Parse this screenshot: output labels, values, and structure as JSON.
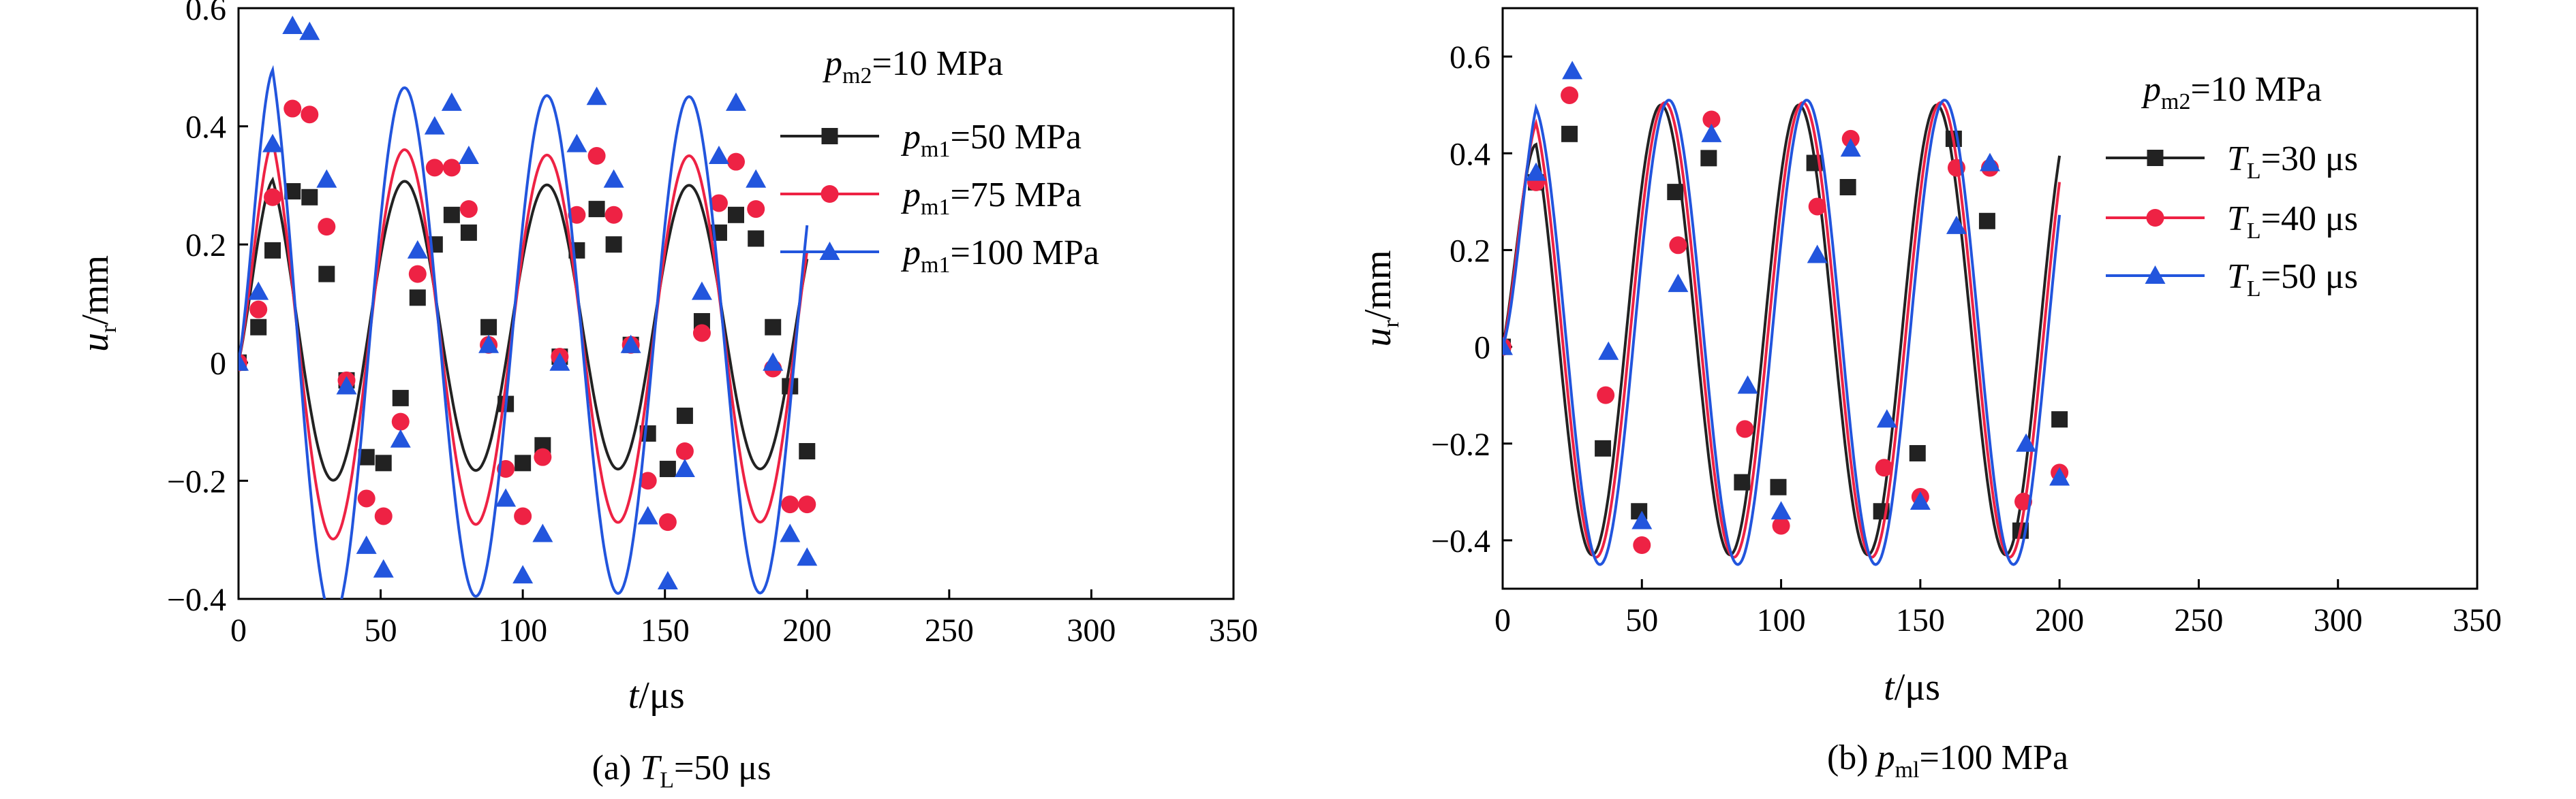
{
  "colors": {
    "black": "#222222",
    "red": "#ee2244",
    "blue": "#2255dd"
  },
  "panels": [
    {
      "caption": {
        "pre": "(a) ",
        "var": "T",
        "sub": "L",
        "post": "=50 μs"
      },
      "legend_title": {
        "var": "p",
        "sub": "m2",
        "post": "=10 MPa"
      }
    },
    {
      "caption": {
        "pre": "(b) ",
        "var": "p",
        "sub": "ml",
        "post": "=100 MPa"
      },
      "legend_title": {
        "var": "p",
        "sub": "m2",
        "post": "=10 MPa"
      }
    }
  ],
  "chart_data": [
    {
      "type": "line",
      "xlabel": {
        "var": "t",
        "post": "/μs"
      },
      "ylabel": {
        "var": "u",
        "sub": "r",
        "post": "/mm"
      },
      "xlim": [
        0,
        350
      ],
      "ylim": [
        -0.4,
        0.6
      ],
      "xticks": [
        0,
        50,
        100,
        150,
        200,
        250,
        300,
        350
      ],
      "yticks": [
        -0.4,
        -0.2,
        0,
        0.2,
        0.4,
        0.6
      ],
      "ytick_labels": [
        "−0.4",
        "−0.2",
        "0",
        "0.2",
        "0.4",
        "0.6"
      ],
      "series": [
        {
          "name": {
            "var": "p",
            "sub": "m1",
            "post": "=50 MPa"
          },
          "color": "#222222",
          "marker": "square",
          "curve": {
            "amp": 0.24,
            "offset": 0.06,
            "period": 50,
            "phase": 8.5,
            "decay": 0.3,
            "x_end": 200
          },
          "points": [
            [
              0,
              0.0
            ],
            [
              7,
              0.06
            ],
            [
              12,
              0.19
            ],
            [
              19,
              0.29
            ],
            [
              25,
              0.28
            ],
            [
              31,
              0.15
            ],
            [
              38,
              -0.03
            ],
            [
              45,
              -0.16
            ],
            [
              51,
              -0.17
            ],
            [
              57,
              -0.06
            ],
            [
              63,
              0.11
            ],
            [
              69,
              0.2
            ],
            [
              75,
              0.25
            ],
            [
              81,
              0.22
            ],
            [
              88,
              0.06
            ],
            [
              94,
              -0.07
            ],
            [
              100,
              -0.17
            ],
            [
              107,
              -0.14
            ],
            [
              113,
              0.01
            ],
            [
              119,
              0.19
            ],
            [
              126,
              0.26
            ],
            [
              132,
              0.2
            ],
            [
              138,
              0.03
            ],
            [
              144,
              -0.12
            ],
            [
              151,
              -0.18
            ],
            [
              157,
              -0.09
            ],
            [
              163,
              0.07
            ],
            [
              169,
              0.22
            ],
            [
              175,
              0.25
            ],
            [
              182,
              0.21
            ],
            [
              188,
              0.06
            ],
            [
              194,
              -0.04
            ],
            [
              200,
              -0.15
            ]
          ]
        },
        {
          "name": {
            "var": "p",
            "sub": "m1",
            "post": "=75 MPa"
          },
          "color": "#ee2244",
          "marker": "circle",
          "curve": {
            "amp": 0.31,
            "offset": 0.04,
            "period": 50,
            "phase": 8.5,
            "decay": 0.35,
            "x_end": 200
          },
          "points": [
            [
              0,
              0.0
            ],
            [
              7,
              0.09
            ],
            [
              12,
              0.28
            ],
            [
              19,
              0.43
            ],
            [
              25,
              0.42
            ],
            [
              31,
              0.23
            ],
            [
              38,
              -0.03
            ],
            [
              45,
              -0.23
            ],
            [
              51,
              -0.26
            ],
            [
              57,
              -0.1
            ],
            [
              63,
              0.15
            ],
            [
              69,
              0.33
            ],
            [
              75,
              0.33
            ],
            [
              81,
              0.26
            ],
            [
              88,
              0.03
            ],
            [
              94,
              -0.18
            ],
            [
              100,
              -0.26
            ],
            [
              107,
              -0.16
            ],
            [
              113,
              0.01
            ],
            [
              119,
              0.25
            ],
            [
              126,
              0.35
            ],
            [
              132,
              0.25
            ],
            [
              138,
              0.03
            ],
            [
              144,
              -0.2
            ],
            [
              151,
              -0.27
            ],
            [
              157,
              -0.15
            ],
            [
              163,
              0.05
            ],
            [
              169,
              0.27
            ],
            [
              175,
              0.34
            ],
            [
              182,
              0.26
            ],
            [
              188,
              -0.01
            ],
            [
              194,
              -0.24
            ],
            [
              200,
              -0.24
            ]
          ]
        },
        {
          "name": {
            "var": "p",
            "sub": "m1",
            "post": "=100 MPa"
          },
          "color": "#2255dd",
          "marker": "triangle",
          "curve": {
            "amp": 0.42,
            "offset": 0.03,
            "period": 50,
            "phase": 8.5,
            "decay": 0.38,
            "x_end": 200
          },
          "points": [
            [
              0,
              0.0
            ],
            [
              7,
              0.12
            ],
            [
              12,
              0.37
            ],
            [
              19,
              0.57
            ],
            [
              25,
              0.56
            ],
            [
              31,
              0.31
            ],
            [
              38,
              -0.04
            ],
            [
              45,
              -0.31
            ],
            [
              51,
              -0.35
            ],
            [
              57,
              -0.13
            ],
            [
              63,
              0.19
            ],
            [
              69,
              0.4
            ],
            [
              75,
              0.44
            ],
            [
              81,
              0.35
            ],
            [
              88,
              0.03
            ],
            [
              94,
              -0.23
            ],
            [
              100,
              -0.36
            ],
            [
              107,
              -0.29
            ],
            [
              113,
              0.0
            ],
            [
              119,
              0.37
            ],
            [
              126,
              0.45
            ],
            [
              132,
              0.31
            ],
            [
              138,
              0.03
            ],
            [
              144,
              -0.26
            ],
            [
              151,
              -0.37
            ],
            [
              157,
              -0.18
            ],
            [
              163,
              0.12
            ],
            [
              169,
              0.35
            ],
            [
              175,
              0.44
            ],
            [
              182,
              0.31
            ],
            [
              188,
              0.0
            ],
            [
              194,
              -0.29
            ],
            [
              200,
              -0.33
            ]
          ]
        }
      ]
    },
    {
      "type": "line",
      "xlabel": {
        "var": "t",
        "post": "/μs"
      },
      "ylabel": {
        "var": "u",
        "sub": "r",
        "post": "/mm"
      },
      "xlim": [
        0,
        350
      ],
      "ylim": [
        -0.5,
        0.7
      ],
      "xticks": [
        0,
        50,
        100,
        150,
        200,
        250,
        300,
        350
      ],
      "yticks": [
        -0.4,
        -0.2,
        0,
        0.2,
        0.4,
        0.6
      ],
      "ytick_labels": [
        "−0.4",
        "−0.2",
        "0",
        "0.2",
        "0.4",
        "0.6"
      ],
      "series": [
        {
          "name": {
            "var": "T",
            "sub": "L",
            "post": "=30 μs"
          },
          "color": "#222222",
          "marker": "square",
          "curve": {
            "amp": 0.465,
            "offset": 0.035,
            "period": 49.5,
            "phase": 7.4,
            "decay": 0.0,
            "x_end": 200
          },
          "points": [
            [
              0,
              0.0
            ],
            [
              12,
              0.34
            ],
            [
              24,
              0.44
            ],
            [
              36,
              -0.21
            ],
            [
              49,
              -0.34
            ],
            [
              62,
              0.32
            ],
            [
              74,
              0.39
            ],
            [
              86,
              -0.28
            ],
            [
              99,
              -0.29
            ],
            [
              112,
              0.38
            ],
            [
              124,
              0.33
            ],
            [
              136,
              -0.34
            ],
            [
              149,
              -0.22
            ],
            [
              162,
              0.43
            ],
            [
              174,
              0.26
            ],
            [
              186,
              -0.38
            ],
            [
              200,
              -0.15
            ]
          ]
        },
        {
          "name": {
            "var": "T",
            "sub": "L",
            "post": "=40 μs"
          },
          "color": "#ee2244",
          "marker": "circle",
          "curve": {
            "amp": 0.47,
            "offset": 0.035,
            "period": 49.5,
            "phase": 8.8,
            "decay": 0.0,
            "x_end": 200
          },
          "points": [
            [
              0,
              0.0
            ],
            [
              12,
              0.34
            ],
            [
              24,
              0.52
            ],
            [
              37,
              -0.1
            ],
            [
              50,
              -0.41
            ],
            [
              63,
              0.21
            ],
            [
              75,
              0.47
            ],
            [
              87,
              -0.17
            ],
            [
              100,
              -0.37
            ],
            [
              113,
              0.29
            ],
            [
              125,
              0.43
            ],
            [
              137,
              -0.25
            ],
            [
              150,
              -0.31
            ],
            [
              163,
              0.37
            ],
            [
              175,
              0.37
            ],
            [
              187,
              -0.32
            ],
            [
              200,
              -0.26
            ]
          ]
        },
        {
          "name": {
            "var": "T",
            "sub": "L",
            "post": "=50 μs"
          },
          "color": "#2255dd",
          "marker": "triangle",
          "curve": {
            "amp": 0.48,
            "offset": 0.03,
            "period": 49.5,
            "phase": 10.2,
            "decay": 0.0,
            "x_end": 200
          },
          "points": [
            [
              0,
              0.0
            ],
            [
              12,
              0.36
            ],
            [
              25,
              0.57
            ],
            [
              38,
              -0.01
            ],
            [
              50,
              -0.36
            ],
            [
              63,
              0.13
            ],
            [
              75,
              0.44
            ],
            [
              88,
              -0.08
            ],
            [
              100,
              -0.34
            ],
            [
              113,
              0.19
            ],
            [
              125,
              0.41
            ],
            [
              138,
              -0.15
            ],
            [
              150,
              -0.32
            ],
            [
              163,
              0.25
            ],
            [
              175,
              0.38
            ],
            [
              188,
              -0.2
            ],
            [
              200,
              -0.27
            ]
          ]
        }
      ]
    }
  ]
}
